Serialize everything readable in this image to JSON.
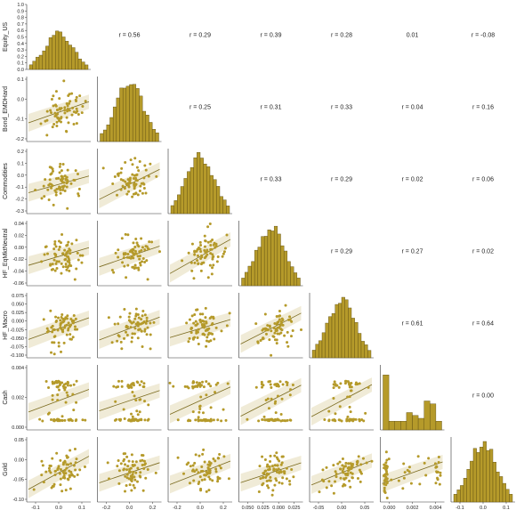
{
  "chart_data": {
    "type": "scatter",
    "title": "",
    "variables": [
      "Equity_US",
      "Bond_EMDHard",
      "Commodities",
      "HF_EqMktNeutral",
      "HF_Macro",
      "Cash",
      "Gold"
    ],
    "point_color": "#b59a2a",
    "bar_color": "#b59a2a",
    "histogram_yticks": [
      "0.0",
      "0.1",
      "0.2",
      "0.3",
      "0.4",
      "0.5",
      "0.6",
      "0.7",
      "0.8",
      "0.9",
      "1.0"
    ],
    "xticks": [
      [
        "-0.1",
        "0.0",
        "0.1"
      ],
      [
        "-0.2",
        "0.0",
        "0.2"
      ],
      [
        "-0.2",
        "0.0",
        "0.2"
      ],
      [
        "0.050",
        "0.025",
        "0.000",
        "0.025"
      ],
      [
        "-0.05",
        "0.00",
        "0.05"
      ],
      [
        "0.000",
        "0.002",
        "0.004"
      ],
      [
        "-0.1",
        "0.0",
        "0.1"
      ]
    ],
    "yticks": [
      [
        "0.0",
        "0.1",
        "0.2",
        "0.3",
        "0.4",
        "0.5",
        "0.6",
        "0.7",
        "0.8",
        "0.9",
        "1.0"
      ],
      [
        "0.1",
        "0.0",
        "-0.1",
        "-0.2"
      ],
      [
        "0.2",
        "0.1",
        "0.0",
        "-0.1",
        "-0.2",
        "-0.3"
      ],
      [
        "0.04",
        "0.02",
        "0.00",
        "-0.02",
        "-0.04",
        "-0.06"
      ],
      [
        "0.075",
        "0.050",
        "0.025",
        "0.000",
        "-0.025",
        "-0.050",
        "-0.075",
        "-0.100"
      ],
      [
        "0.004",
        "0.002",
        "0.000"
      ],
      [
        "0.05",
        "0.00",
        "-0.05",
        "-0.10"
      ]
    ],
    "correlations": [
      {
        "row": "Equity_US",
        "col": "Bond_EMDHard",
        "label": "r = 0.56"
      },
      {
        "row": "Equity_US",
        "col": "Commodities",
        "label": "r = 0.29"
      },
      {
        "row": "Equity_US",
        "col": "HF_EqMktNeutral",
        "label": "r = 0.39"
      },
      {
        "row": "Equity_US",
        "col": "HF_Macro",
        "label": "r = 0.28"
      },
      {
        "row": "Equity_US",
        "col": "Cash",
        "label": "0.01"
      },
      {
        "row": "Equity_US",
        "col": "Gold",
        "label": "r = -0.08"
      },
      {
        "row": "Bond_EMDHard",
        "col": "Commodities",
        "label": "r = 0.25"
      },
      {
        "row": "Bond_EMDHard",
        "col": "HF_EqMktNeutral",
        "label": "r = 0.31"
      },
      {
        "row": "Bond_EMDHard",
        "col": "HF_Macro",
        "label": "r = 0.33"
      },
      {
        "row": "Bond_EMDHard",
        "col": "Cash",
        "label": "r = 0.04"
      },
      {
        "row": "Bond_EMDHard",
        "col": "Gold",
        "label": "r = 0.16"
      },
      {
        "row": "Commodities",
        "col": "HF_EqMktNeutral",
        "label": "r = 0.33"
      },
      {
        "row": "Commodities",
        "col": "HF_Macro",
        "label": "r = 0.29"
      },
      {
        "row": "Commodities",
        "col": "Cash",
        "label": "r = 0.02"
      },
      {
        "row": "Commodities",
        "col": "Gold",
        "label": "r = 0.06"
      },
      {
        "row": "HF_EqMktNeutral",
        "col": "HF_Macro",
        "label": "r = 0.29"
      },
      {
        "row": "HF_EqMktNeutral",
        "col": "Cash",
        "label": "r = 0.27"
      },
      {
        "row": "HF_EqMktNeutral",
        "col": "Gold",
        "label": "r = 0.02"
      },
      {
        "row": "HF_Macro",
        "col": "Cash",
        "label": "r = 0.61"
      },
      {
        "row": "HF_Macro",
        "col": "Gold",
        "label": "r = 0.64"
      },
      {
        "row": "Cash",
        "col": "Gold",
        "label": "r = 0.00"
      }
    ]
  }
}
